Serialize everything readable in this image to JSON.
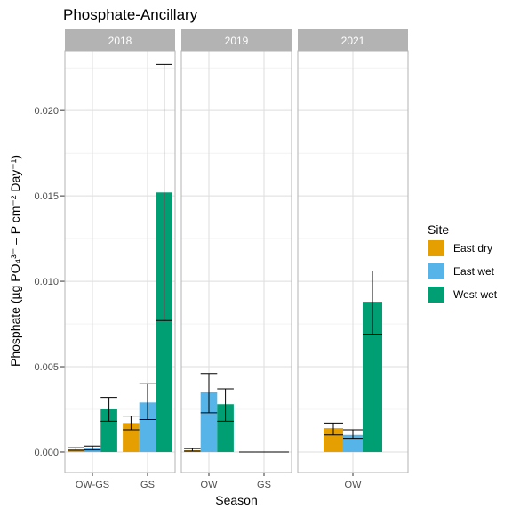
{
  "chart_data": {
    "type": "bar",
    "title": "Phosphate-Ancillary",
    "xlabel": "Season",
    "ylabel": "Phosphate (µg PO₄³⁻ – P cm⁻² Day⁻¹)",
    "ylim": [
      -0.0012,
      0.0235
    ],
    "yticks": [
      0.0,
      0.005,
      0.01,
      0.015,
      0.02
    ],
    "ytick_labels": [
      "0.000",
      "0.005",
      "0.010",
      "0.015",
      "0.020"
    ],
    "grid": true,
    "legend": {
      "title": "Site",
      "position": "right"
    },
    "series": [
      {
        "name": "East dry",
        "color": "#E69F00"
      },
      {
        "name": "East wet",
        "color": "#56B4E9"
      },
      {
        "name": "West wet",
        "color": "#009E73"
      }
    ],
    "panels": [
      {
        "label": "2018",
        "categories": [
          {
            "label": "OW-GS",
            "bars": [
              {
                "series": "East dry",
                "value": 0.00015,
                "err_low": 0.0001,
                "err_high": 0.00025
              },
              {
                "series": "East wet",
                "value": 0.0002,
                "err_low": 0.00012,
                "err_high": 0.00035
              },
              {
                "series": "West wet",
                "value": 0.0025,
                "err_low": 0.0018,
                "err_high": 0.0032
              }
            ]
          },
          {
            "label": "GS",
            "bars": [
              {
                "series": "East dry",
                "value": 0.0017,
                "err_low": 0.0013,
                "err_high": 0.0021
              },
              {
                "series": "East wet",
                "value": 0.0029,
                "err_low": 0.0019,
                "err_high": 0.004
              },
              {
                "series": "West wet",
                "value": 0.0152,
                "err_low": 0.0077,
                "err_high": 0.0227
              }
            ]
          }
        ]
      },
      {
        "label": "2019",
        "categories": [
          {
            "label": "OW",
            "bars": [
              {
                "series": "East dry",
                "value": 0.0001,
                "err_low": 5e-05,
                "err_high": 0.0002
              },
              {
                "series": "East wet",
                "value": 0.0035,
                "err_low": 0.0023,
                "err_high": 0.0046
              },
              {
                "series": "West wet",
                "value": 0.0028,
                "err_low": 0.0018,
                "err_high": 0.0037
              }
            ]
          },
          {
            "label": "GS",
            "bars": [
              {
                "series": "East dry",
                "value": 0.0,
                "err_low": 0.0,
                "err_high": 0.0
              },
              {
                "series": "East wet",
                "value": 0.0,
                "err_low": 0.0,
                "err_high": 0.0
              },
              {
                "series": "West wet",
                "value": 0.0,
                "err_low": 0.0,
                "err_high": 0.0
              }
            ]
          }
        ]
      },
      {
        "label": "2021",
        "categories": [
          {
            "label": "OW",
            "bars": [
              {
                "series": "East dry",
                "value": 0.0014,
                "err_low": 0.001,
                "err_high": 0.0017
              },
              {
                "series": "East wet",
                "value": 0.001,
                "err_low": 0.0008,
                "err_high": 0.0013
              },
              {
                "series": "West wet",
                "value": 0.0088,
                "err_low": 0.0069,
                "err_high": 0.0106
              }
            ]
          }
        ]
      }
    ]
  }
}
